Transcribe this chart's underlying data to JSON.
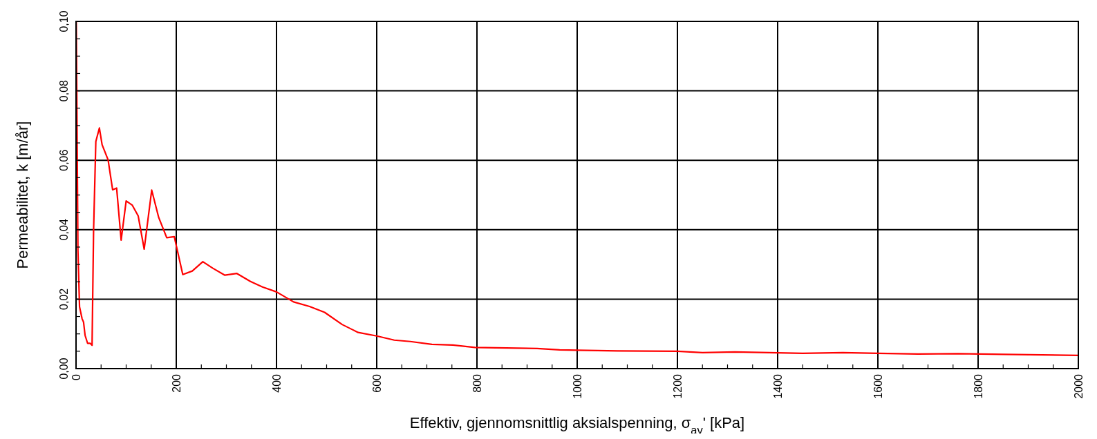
{
  "chart_data": {
    "type": "line",
    "xlabel": "Effektiv, gjennomsnittlig aksialspenning, σ$_{av}$'  [kPa]",
    "ylabel": "Permeabilitet, k [m/år]",
    "x": [
      0.5,
      3.8,
      7,
      12,
      15,
      18,
      23,
      28,
      32,
      35,
      39.5,
      46.6,
      52,
      64,
      73,
      81,
      90,
      100,
      112,
      124,
      136,
      151,
      165,
      181,
      196,
      213,
      232,
      253,
      273,
      297,
      321,
      348,
      372,
      400,
      434,
      466,
      496,
      531,
      563,
      600,
      635,
      667,
      710,
      752,
      796,
      880,
      920,
      965,
      1000,
      1080,
      1200,
      1250,
      1315,
      1450,
      1530,
      1600,
      1680,
      1760,
      1850,
      2000
    ],
    "series": [
      {
        "color": "#ff0000",
        "values": [
          0.1,
          0.034,
          0.0178,
          0.0144,
          0.0134,
          0.0096,
          0.0073,
          0.0073,
          0.0067,
          0.0397,
          0.0654,
          0.0693,
          0.0645,
          0.0601,
          0.0515,
          0.052,
          0.037,
          0.0483,
          0.0471,
          0.044,
          0.0344,
          0.0514,
          0.0435,
          0.0377,
          0.038,
          0.0271,
          0.0281,
          0.0308,
          0.0289,
          0.0269,
          0.0274,
          0.0251,
          0.0235,
          0.0221,
          0.0192,
          0.0179,
          0.0162,
          0.0127,
          0.0104,
          0.0094,
          0.0082,
          0.0078,
          0.007,
          0.0068,
          0.0061,
          0.0059,
          0.0058,
          0.0054,
          0.0053,
          0.0051,
          0.005,
          0.0046,
          0.0048,
          0.0044,
          0.0046,
          0.0044,
          0.0042,
          0.0043,
          0.0041,
          0.0038
        ]
      }
    ],
    "xlim": [
      0,
      2000
    ],
    "xticks": [
      0,
      {
        "value": 50,
        "label": null
      },
      {
        "value": 100,
        "label": null
      },
      {
        "value": 150,
        "label": null
      },
      200,
      {
        "value": 250,
        "label": null
      },
      {
        "value": 300,
        "label": null
      },
      {
        "value": 350,
        "label": null
      },
      400,
      {
        "value": 450,
        "label": null
      },
      {
        "value": 500,
        "label": null
      },
      {
        "value": 550,
        "label": null
      },
      600,
      {
        "value": 650,
        "label": null
      },
      {
        "value": 700,
        "label": null
      },
      {
        "value": 750,
        "label": null
      },
      800,
      {
        "value": 850,
        "label": null
      },
      {
        "value": 900,
        "label": null
      },
      {
        "value": 950,
        "label": null
      },
      1000,
      {
        "value": 1050,
        "label": null
      },
      {
        "value": 1100,
        "label": null
      },
      {
        "value": 1150,
        "label": null
      },
      1200,
      {
        "value": 1250,
        "label": null
      },
      {
        "value": 1300,
        "label": null
      },
      {
        "value": 1350,
        "label": null
      },
      1400,
      {
        "value": 1450,
        "label": null
      },
      {
        "value": 1500,
        "label": null
      },
      {
        "value": 1550,
        "label": null
      },
      1600,
      {
        "value": 1650,
        "label": null
      },
      {
        "value": 1700,
        "label": null
      },
      {
        "value": 1750,
        "label": null
      },
      1800,
      {
        "value": 1850,
        "label": null
      },
      {
        "value": 1900,
        "label": null
      },
      {
        "value": 1950,
        "label": null
      },
      2000
    ],
    "ylim": [
      0,
      0.1
    ],
    "yticks": [
      {
        "value": 0,
        "label": "0,00"
      },
      {
        "value": 0.005,
        "label": null
      },
      {
        "value": 0.01,
        "label": null
      },
      {
        "value": 0.015,
        "label": null
      },
      {
        "value": 0.02,
        "label": "0,02"
      },
      {
        "value": 0.025,
        "label": null
      },
      {
        "value": 0.03,
        "label": null
      },
      {
        "value": 0.035,
        "label": null
      },
      {
        "value": 0.04,
        "label": "0,04"
      },
      {
        "value": 0.045,
        "label": null
      },
      {
        "value": 0.05,
        "label": null
      },
      {
        "value": 0.055,
        "label": null
      },
      {
        "value": 0.06,
        "label": "0,06"
      },
      {
        "value": 0.065,
        "label": null
      },
      {
        "value": 0.07,
        "label": null
      },
      {
        "value": 0.075,
        "label": null
      },
      {
        "value": 0.08,
        "label": "0,08"
      },
      {
        "value": 0.085,
        "label": null
      },
      {
        "value": 0.09,
        "label": null
      },
      {
        "value": 0.095,
        "label": null
      },
      {
        "value": 0.1,
        "label": "0,10"
      }
    ],
    "grid": true,
    "marker": "none",
    "line_style": "solid"
  }
}
